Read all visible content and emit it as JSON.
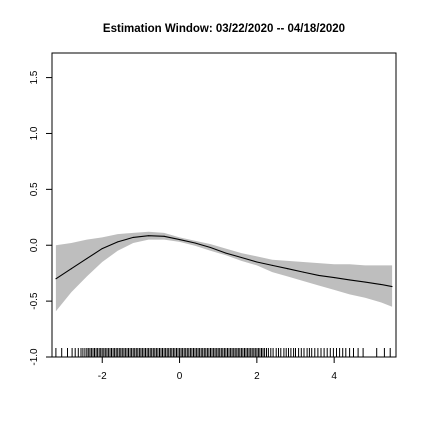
{
  "chart_data": {
    "type": "line",
    "title": "Estimation Window: 03/22/2020 -- 04/18/2020",
    "xlabel": "",
    "ylabel": "",
    "xlim": [
      -3.3,
      5.6
    ],
    "ylim": [
      -1.0,
      1.72
    ],
    "grid": false,
    "legend": "none",
    "x_ticks": [
      -2,
      0,
      2,
      4
    ],
    "y_ticks": [
      -1.0,
      -0.5,
      0.0,
      0.5,
      1.0,
      1.5
    ],
    "x_tick_labels": [
      "-2",
      "0",
      "2",
      "4"
    ],
    "y_tick_labels": [
      "-1.0",
      "-0.5",
      "0.0",
      "0.5",
      "1.0",
      "1.5"
    ],
    "colors": {
      "line": "#000000",
      "band": "#bebebe",
      "axis": "#000000",
      "rug": "#000000"
    },
    "series": [
      {
        "values": [
          {
            "x": -3.2,
            "y": -0.3,
            "lower": -0.59,
            "upper": 0.0
          },
          {
            "x": -2.8,
            "y": -0.21,
            "lower": -0.42,
            "upper": 0.02
          },
          {
            "x": -2.4,
            "y": -0.12,
            "lower": -0.28,
            "upper": 0.05
          },
          {
            "x": -2.0,
            "y": -0.03,
            "lower": -0.15,
            "upper": 0.07
          },
          {
            "x": -1.6,
            "y": 0.03,
            "lower": -0.05,
            "upper": 0.1
          },
          {
            "x": -1.2,
            "y": 0.07,
            "lower": 0.02,
            "upper": 0.11
          },
          {
            "x": -0.8,
            "y": 0.085,
            "lower": 0.05,
            "upper": 0.12
          },
          {
            "x": -0.4,
            "y": 0.08,
            "lower": 0.05,
            "upper": 0.11
          },
          {
            "x": 0.0,
            "y": 0.05,
            "lower": 0.03,
            "upper": 0.07
          },
          {
            "x": 0.4,
            "y": 0.02,
            "lower": -0.005,
            "upper": 0.04
          },
          {
            "x": 0.8,
            "y": -0.02,
            "lower": -0.05,
            "upper": 0.01
          },
          {
            "x": 1.2,
            "y": -0.07,
            "lower": -0.09,
            "upper": -0.03
          },
          {
            "x": 1.6,
            "y": -0.11,
            "lower": -0.14,
            "upper": -0.07
          },
          {
            "x": 2.0,
            "y": -0.15,
            "lower": -0.18,
            "upper": -0.1
          },
          {
            "x": 2.4,
            "y": -0.18,
            "lower": -0.24,
            "upper": -0.13
          },
          {
            "x": 2.8,
            "y": -0.21,
            "lower": -0.28,
            "upper": -0.14
          },
          {
            "x": 3.2,
            "y": -0.24,
            "lower": -0.32,
            "upper": -0.15
          },
          {
            "x": 3.6,
            "y": -0.27,
            "lower": -0.36,
            "upper": -0.16
          },
          {
            "x": 4.0,
            "y": -0.29,
            "lower": -0.4,
            "upper": -0.17
          },
          {
            "x": 4.4,
            "y": -0.31,
            "lower": -0.44,
            "upper": -0.17
          },
          {
            "x": 4.8,
            "y": -0.33,
            "lower": -0.47,
            "upper": -0.18
          },
          {
            "x": 5.2,
            "y": -0.35,
            "lower": -0.51,
            "upper": -0.18
          },
          {
            "x": 5.5,
            "y": -0.37,
            "lower": -0.55,
            "upper": -0.18
          }
        ]
      }
    ],
    "rug": [
      -3.2,
      -3.05,
      -2.9,
      -2.78,
      -2.7,
      -2.62,
      -2.55,
      -2.5,
      -2.45,
      -2.4,
      -2.36,
      -2.32,
      -2.28,
      -2.24,
      -2.2,
      -2.16,
      -2.12,
      -2.08,
      -2.04,
      -2.0,
      -1.96,
      -1.92,
      -1.88,
      -1.84,
      -1.8,
      -1.76,
      -1.72,
      -1.68,
      -1.64,
      -1.6,
      -1.56,
      -1.52,
      -1.48,
      -1.44,
      -1.4,
      -1.36,
      -1.32,
      -1.28,
      -1.24,
      -1.2,
      -1.16,
      -1.12,
      -1.08,
      -1.04,
      -1.0,
      -0.96,
      -0.92,
      -0.88,
      -0.84,
      -0.8,
      -0.76,
      -0.72,
      -0.68,
      -0.64,
      -0.6,
      -0.56,
      -0.52,
      -0.48,
      -0.44,
      -0.4,
      -0.36,
      -0.32,
      -0.28,
      -0.24,
      -0.2,
      -0.16,
      -0.12,
      -0.08,
      -0.04,
      0.0,
      0.04,
      0.08,
      0.12,
      0.16,
      0.2,
      0.24,
      0.28,
      0.32,
      0.36,
      0.4,
      0.44,
      0.48,
      0.52,
      0.56,
      0.6,
      0.64,
      0.68,
      0.72,
      0.76,
      0.8,
      0.84,
      0.88,
      0.92,
      0.96,
      1.0,
      1.04,
      1.08,
      1.12,
      1.16,
      1.2,
      1.24,
      1.28,
      1.32,
      1.36,
      1.4,
      1.44,
      1.48,
      1.52,
      1.56,
      1.6,
      1.64,
      1.68,
      1.72,
      1.76,
      1.8,
      1.84,
      1.88,
      1.92,
      1.96,
      2.0,
      2.04,
      2.08,
      2.12,
      2.16,
      2.2,
      2.25,
      2.3,
      2.36,
      2.42,
      2.5,
      2.56,
      2.62,
      2.7,
      2.76,
      2.82,
      2.88,
      2.95,
      3.0,
      3.08,
      3.15,
      3.22,
      3.3,
      3.36,
      3.42,
      3.5,
      3.58,
      3.66,
      3.74,
      3.82,
      3.9,
      3.98,
      4.06,
      4.14,
      4.22,
      4.3,
      4.4,
      4.5,
      4.62,
      4.75,
      5.1,
      5.3,
      5.45
    ]
  }
}
